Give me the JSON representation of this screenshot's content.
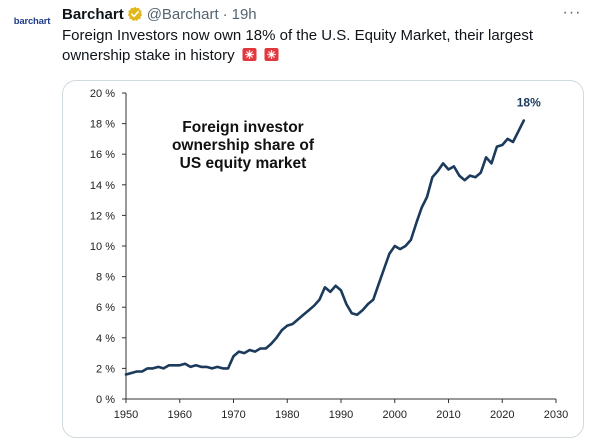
{
  "tweet": {
    "logo_text": "barchart",
    "name": "Barchart",
    "handle": "@Barchart",
    "separator": "·",
    "time": "19h",
    "more_label": "···",
    "text": "Foreign Investors now own 18% of the U.S. Equity Market, their largest ownership stake in history"
  },
  "chart_data": {
    "type": "line",
    "title": "Foreign investor\nownership share of\nUS equity market",
    "end_label": "18%",
    "xlim": [
      1950,
      2030
    ],
    "ylim": [
      0,
      20
    ],
    "x_ticks": [
      "1950",
      "1960",
      "1970",
      "1980",
      "1990",
      "2000",
      "2010",
      "2020",
      "2030"
    ],
    "y_ticks": [
      "0 %",
      "2 %",
      "4 %",
      "6 %",
      "8 %",
      "10 %",
      "12 %",
      "14 %",
      "16 %",
      "18 %",
      "20 %"
    ],
    "line_color": "#1b3a5c",
    "series": [
      {
        "points": [
          [
            1950,
            1.6
          ],
          [
            1951,
            1.7
          ],
          [
            1952,
            1.8
          ],
          [
            1953,
            1.8
          ],
          [
            1954,
            2.0
          ],
          [
            1955,
            2.0
          ],
          [
            1956,
            2.1
          ],
          [
            1957,
            2.0
          ],
          [
            1958,
            2.2
          ],
          [
            1959,
            2.2
          ],
          [
            1960,
            2.2
          ],
          [
            1961,
            2.3
          ],
          [
            1962,
            2.1
          ],
          [
            1963,
            2.2
          ],
          [
            1964,
            2.1
          ],
          [
            1965,
            2.1
          ],
          [
            1966,
            2.0
          ],
          [
            1967,
            2.1
          ],
          [
            1968,
            2.0
          ],
          [
            1969,
            2.0
          ],
          [
            1970,
            2.8
          ],
          [
            1971,
            3.1
          ],
          [
            1972,
            3.0
          ],
          [
            1973,
            3.2
          ],
          [
            1974,
            3.1
          ],
          [
            1975,
            3.3
          ],
          [
            1976,
            3.3
          ],
          [
            1977,
            3.6
          ],
          [
            1978,
            4.0
          ],
          [
            1979,
            4.5
          ],
          [
            1980,
            4.8
          ],
          [
            1981,
            4.9
          ],
          [
            1982,
            5.2
          ],
          [
            1983,
            5.5
          ],
          [
            1984,
            5.8
          ],
          [
            1985,
            6.1
          ],
          [
            1986,
            6.5
          ],
          [
            1987,
            7.3
          ],
          [
            1988,
            7.0
          ],
          [
            1989,
            7.4
          ],
          [
            1990,
            7.1
          ],
          [
            1991,
            6.2
          ],
          [
            1992,
            5.6
          ],
          [
            1993,
            5.5
          ],
          [
            1994,
            5.8
          ],
          [
            1995,
            6.2
          ],
          [
            1996,
            6.5
          ],
          [
            1997,
            7.5
          ],
          [
            1998,
            8.5
          ],
          [
            1999,
            9.5
          ],
          [
            2000,
            10.0
          ],
          [
            2001,
            9.8
          ],
          [
            2002,
            10.0
          ],
          [
            2003,
            10.4
          ],
          [
            2004,
            11.5
          ],
          [
            2005,
            12.5
          ],
          [
            2006,
            13.2
          ],
          [
            2007,
            14.5
          ],
          [
            2008,
            14.9
          ],
          [
            2009,
            15.4
          ],
          [
            2010,
            15.0
          ],
          [
            2011,
            15.2
          ],
          [
            2012,
            14.6
          ],
          [
            2013,
            14.3
          ],
          [
            2014,
            14.6
          ],
          [
            2015,
            14.5
          ],
          [
            2016,
            14.8
          ],
          [
            2017,
            15.8
          ],
          [
            2018,
            15.4
          ],
          [
            2019,
            16.5
          ],
          [
            2020,
            16.6
          ],
          [
            2021,
            17.0
          ],
          [
            2022,
            16.8
          ],
          [
            2023,
            17.5
          ],
          [
            2024,
            18.2
          ]
        ]
      }
    ]
  }
}
